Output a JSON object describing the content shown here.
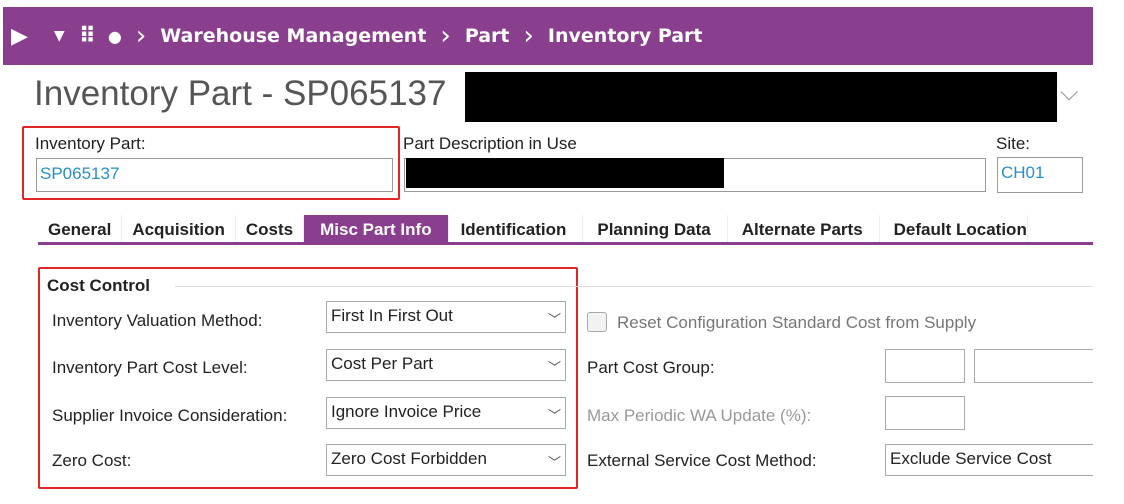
{
  "topbar": {
    "breadcrumb": [
      "Warehouse Management",
      "Part",
      "Inventory Part"
    ],
    "icons": [
      "play-icon",
      "dropdown-icon",
      "apps-grid-icon",
      "dot-icon"
    ]
  },
  "header": {
    "title": "Inventory Part - SP065137"
  },
  "fields": {
    "inventory_part_label": "Inventory Part:",
    "inventory_part_value": "SP065137",
    "description_label": "Part Description in Use",
    "site_label": "Site:",
    "site_value": "CH01"
  },
  "tabs": [
    {
      "label": "General"
    },
    {
      "label": "Acquisition"
    },
    {
      "label": "Costs"
    },
    {
      "label": "Misc Part Info",
      "active": true
    },
    {
      "label": "Identification"
    },
    {
      "label": "Planning Data"
    },
    {
      "label": "Alternate Parts"
    },
    {
      "label": "Default Location"
    }
  ],
  "cost_control": {
    "heading": "Cost Control",
    "rows": [
      {
        "label": "Inventory Valuation Method:",
        "value": "First In First Out"
      },
      {
        "label": "Inventory Part Cost Level:",
        "value": "Cost Per Part"
      },
      {
        "label": "Supplier Invoice Consideration:",
        "value": "Ignore Invoice Price"
      },
      {
        "label": "Zero Cost:",
        "value": "Zero Cost Forbidden"
      }
    ]
  },
  "right": {
    "reset_label": "Reset Configuration Standard Cost from Supply",
    "part_cost_group_label": "Part Cost Group:",
    "max_periodic_label": "Max Periodic WA Update (%):",
    "external_service_label": "External Service Cost Method:",
    "external_service_value": "Exclude Service Cost"
  },
  "colors": {
    "accent": "#893f8e",
    "highlight": "#e02626",
    "link": "#2a8fc7"
  }
}
